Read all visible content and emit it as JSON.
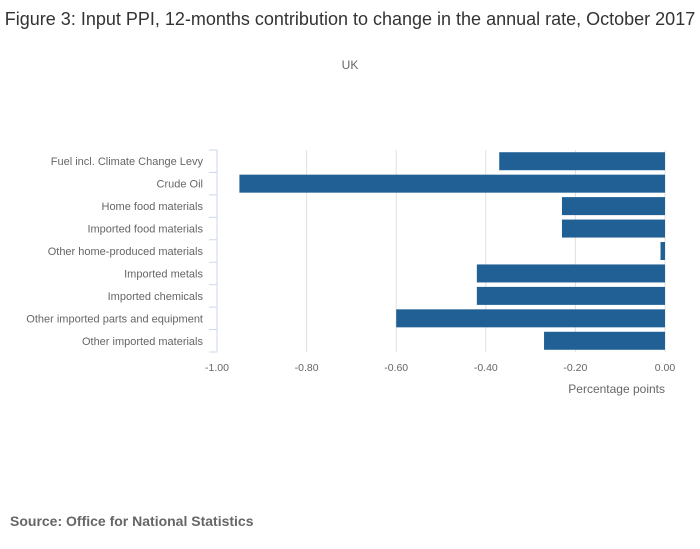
{
  "chart_data": {
    "type": "bar",
    "orientation": "horizontal",
    "title": "Figure 3: Input PPI, 12-months contribution to change in the annual rate, October 2017",
    "subtitle": "UK",
    "categories": [
      "Fuel incl. Climate Change Levy",
      "Crude Oil",
      "Home food materials",
      "Imported food materials",
      "Other home-produced materials",
      "Imported metals",
      "Imported chemicals",
      "Other imported parts and equipment",
      "Other imported materials"
    ],
    "values": [
      -0.37,
      -0.95,
      -0.23,
      -0.23,
      -0.01,
      -0.42,
      -0.42,
      -0.6,
      -0.27
    ],
    "xlabel": "Percentage points",
    "ylabel": "",
    "xlim": [
      -1.0,
      0.0
    ],
    "xticks": [
      "-1.00",
      "-0.80",
      "-0.60",
      "-0.40",
      "-0.20",
      "0.00"
    ],
    "grid": true,
    "legend": "none",
    "bar_color": "#206095"
  },
  "source": "Source: Office for National Statistics"
}
